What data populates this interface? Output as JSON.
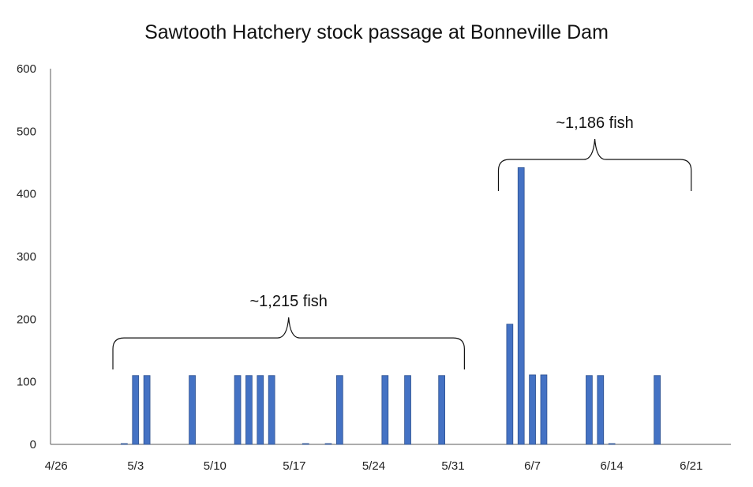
{
  "chart_data": {
    "type": "bar",
    "title": "Sawtooth Hatchery stock passage at Bonneville Dam",
    "xlabel": "",
    "ylabel": "",
    "x_start": "4/26",
    "x_end": "6/25",
    "ylim": [
      0,
      600
    ],
    "y_ticks": [
      0,
      100,
      200,
      300,
      400,
      500,
      600
    ],
    "x_tick_labels": [
      "4/26",
      "5/3",
      "5/10",
      "5/17",
      "5/24",
      "5/31",
      "6/7",
      "6/14",
      "6/21"
    ],
    "grid": false,
    "bar_color": "#4472C4",
    "bars": [
      {
        "date": "5/2",
        "value": 1
      },
      {
        "date": "5/3",
        "value": 110
      },
      {
        "date": "5/4",
        "value": 110
      },
      {
        "date": "5/8",
        "value": 110
      },
      {
        "date": "5/12",
        "value": 110
      },
      {
        "date": "5/13",
        "value": 110
      },
      {
        "date": "5/14",
        "value": 110
      },
      {
        "date": "5/15",
        "value": 110
      },
      {
        "date": "5/18",
        "value": 1
      },
      {
        "date": "5/20",
        "value": 1
      },
      {
        "date": "5/21",
        "value": 110
      },
      {
        "date": "5/25",
        "value": 110
      },
      {
        "date": "5/27",
        "value": 110
      },
      {
        "date": "5/30",
        "value": 110
      },
      {
        "date": "6/5",
        "value": 192
      },
      {
        "date": "6/6",
        "value": 442
      },
      {
        "date": "6/7",
        "value": 111
      },
      {
        "date": "6/8",
        "value": 111
      },
      {
        "date": "6/12",
        "value": 110
      },
      {
        "date": "6/13",
        "value": 110
      },
      {
        "date": "6/14",
        "value": 1
      },
      {
        "date": "6/18",
        "value": 110
      }
    ],
    "annotations": [
      {
        "text": "~1,215 fish",
        "from": "5/1",
        "to": "6/1",
        "y": 170
      },
      {
        "text": "~1,186 fish",
        "from": "6/4",
        "to": "6/21",
        "y": 455
      }
    ]
  }
}
